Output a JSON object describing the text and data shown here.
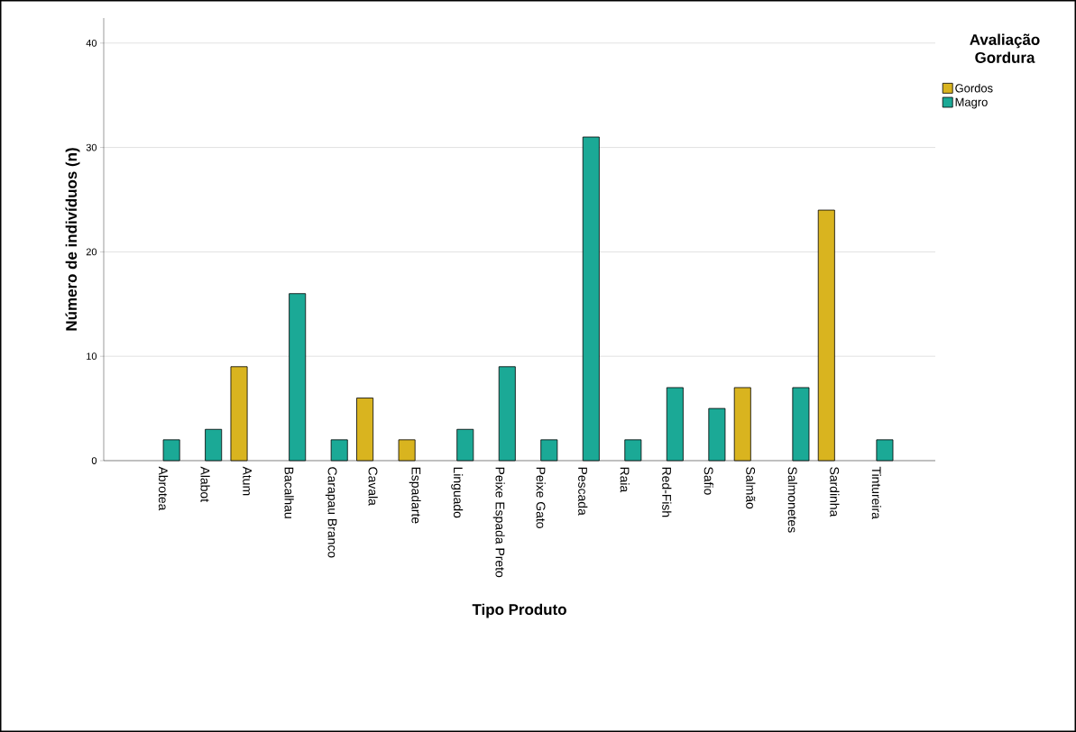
{
  "chart_data": {
    "type": "bar",
    "xlabel": "Tipo Produto",
    "ylabel": "Número de indivíduos (n)",
    "legend_title": "Avaliação Gordura",
    "categories": [
      "Abrotea",
      "Alabot",
      "Atum",
      "Bacalhau",
      "Carapau Branco",
      "Cavala",
      "Espadarte",
      "Linguado",
      "Peixe Espada Preto",
      "Peixe Gato",
      "Pescada",
      "Raia",
      "Red-Fish",
      "Safio",
      "Salmão",
      "Salmonetes",
      "Sardinha",
      "Tintureira"
    ],
    "series": [
      {
        "name": "Gordos",
        "color": "#d9b41f",
        "values": [
          null,
          null,
          9,
          null,
          null,
          6,
          2,
          null,
          null,
          null,
          null,
          null,
          null,
          null,
          7,
          null,
          24,
          null
        ]
      },
      {
        "name": "Magro",
        "color": "#1ba996",
        "values": [
          2,
          3,
          null,
          16,
          2,
          null,
          null,
          3,
          9,
          2,
          31,
          2,
          7,
          5,
          null,
          7,
          null,
          2
        ]
      }
    ],
    "ylim": [
      0,
      42.4
    ],
    "yticks": [
      0,
      10,
      20,
      30,
      40
    ],
    "grid": "y",
    "legend": "top right"
  }
}
